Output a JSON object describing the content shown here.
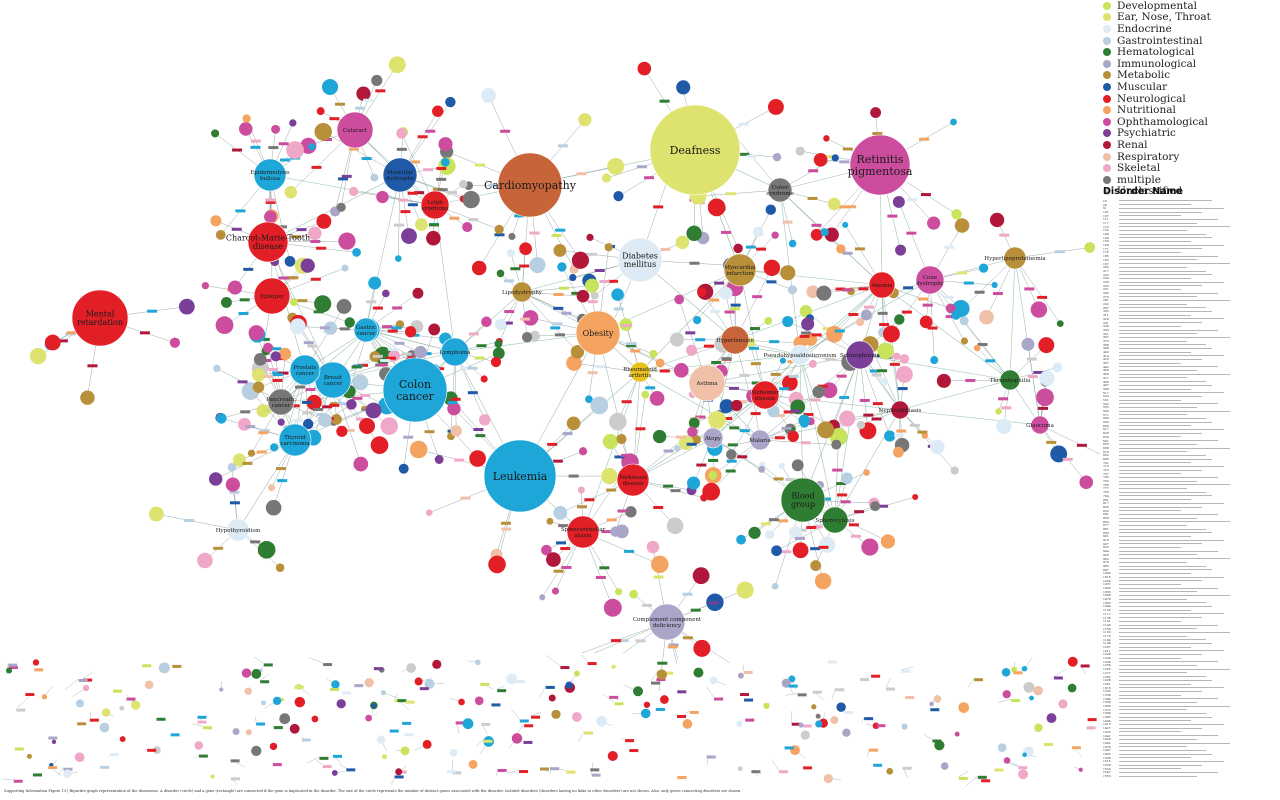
{
  "legend": {
    "items": [
      {
        "label": "Developmental",
        "color": "#c8e45c"
      },
      {
        "label": "Ear, Nose, Throat",
        "color": "#dde36e"
      },
      {
        "label": "Endocrine",
        "color": "#dcebf5"
      },
      {
        "label": "Gastrointestinal",
        "color": "#b7cfe0"
      },
      {
        "label": "Hematological",
        "color": "#2f7d32"
      },
      {
        "label": "Immunological",
        "color": "#a9a6c8"
      },
      {
        "label": "Metabolic",
        "color": "#b8903a"
      },
      {
        "label": "Muscular",
        "color": "#1e5aa8"
      },
      {
        "label": "Neurological",
        "color": "#e21f26"
      },
      {
        "label": "Nutritional",
        "color": "#f4a460"
      },
      {
        "label": "Ophthamological",
        "color": "#cc4c9e"
      },
      {
        "label": "Psychiatric",
        "color": "#7b3f98"
      },
      {
        "label": "Renal",
        "color": "#b0173a"
      },
      {
        "label": "Respiratory",
        "color": "#f0c0a8"
      },
      {
        "label": "Skeletal",
        "color": "#f0a8c8"
      },
      {
        "label": "multiple",
        "color": "#777777"
      },
      {
        "label": "Unclassified",
        "color": "#cccccc"
      }
    ]
  },
  "disorder_index": {
    "title": "Disorder Name",
    "numbers": [
      "16",
      "24",
      "51",
      "101",
      "107",
      "111",
      "117",
      "123",
      "132",
      "144",
      "149",
      "155",
      "166",
      "171",
      "178",
      "185",
      "192",
      "197",
      "205",
      "217",
      "222",
      "230",
      "239",
      "245",
      "251",
      "262",
      "275",
      "281",
      "292",
      "297",
      "303",
      "311",
      "320",
      "331",
      "339",
      "343",
      "351",
      "367",
      "375",
      "388",
      "399",
      "402",
      "414",
      "425",
      "437",
      "442",
      "458",
      "466",
      "471",
      "480",
      "497",
      "506",
      "517",
      "524",
      "531",
      "542",
      "555",
      "560",
      "571",
      "584",
      "592",
      "609",
      "617",
      "628",
      "633",
      "641",
      "655",
      "668",
      "674",
      "682",
      "696",
      "701",
      "716",
      "723",
      "737",
      "745",
      "752",
      "766",
      "777",
      "783",
      "794",
      "801",
      "817",
      "826",
      "832",
      "841",
      "858",
      "864",
      "877",
      "881",
      "893",
      "901",
      "919",
      "927",
      "933",
      "944",
      "958",
      "963",
      "976",
      "982",
      "997",
      "1003",
      "1016",
      "1024",
      "1037",
      "1045",
      "1058",
      "1066",
      "1079",
      "1083",
      "1094",
      "1102",
      "1117",
      "1126",
      "1131",
      "1148",
      "1159",
      "1163",
      "1175",
      "1184",
      "1196",
      "1207",
      "1211",
      "1228",
      "1234",
      "1249",
      "1256",
      "1263",
      "1277",
      "1282",
      "1298",
      "1301",
      "1316",
      "1325",
      "1338",
      "1344",
      "1359",
      "1366",
      "1372",
      "1389",
      "1395",
      "1404",
      "1418",
      "1427",
      "1433",
      "1441",
      "1459",
      "1462",
      "1476",
      "1487",
      "1493",
      "1508",
      "1515",
      "1529",
      "1532",
      "1547",
      "1553",
      "1564",
      "1578",
      "1586",
      "1591",
      "1605",
      "1618",
      "1622",
      "1639",
      "1643",
      "1657",
      "1664",
      "1672",
      "1688",
      "1695",
      "1702",
      "1719",
      "1721",
      "1738",
      "1746",
      "1757",
      "1768",
      "1773",
      "1785",
      "1792",
      "1806",
      "1811",
      "1827",
      "1834",
      "1849",
      "1856",
      "1862",
      "1879",
      "1883",
      "1895",
      "1904",
      "1918",
      "1926",
      "1931",
      "1947",
      "1953",
      "1969",
      "1972",
      "1988",
      "1993",
      "2005",
      "2011",
      "2024",
      "2038",
      "2043",
      "2056",
      "2067",
      "2075",
      "2082",
      "2094",
      "2101",
      "2119",
      "2127",
      "2133",
      "2146",
      "2154",
      "2168",
      "2172",
      "2189",
      "2195",
      "2207",
      "2214",
      "2226",
      "2231",
      "2248",
      "2255",
      "2267",
      "2273",
      "2285",
      "2291",
      "2312",
      "2322",
      "2333",
      "2345",
      "2356",
      "2378",
      "2389",
      "2399",
      "2412",
      "2422",
      "2444",
      "2468",
      "2487",
      "2509",
      "2522",
      "2531",
      "2545",
      "2566",
      "2584"
    ]
  },
  "graph": {
    "hubs": [
      {
        "label": "Deafness",
        "color": "#dde36e",
        "size": 3
      },
      {
        "label": "Cardiomyopathy",
        "color": "#c8643a",
        "size": 2
      },
      {
        "label": "Retinitis pigmentosa",
        "color": "#cc4c9e",
        "size": 2
      },
      {
        "label": "Diabetes mellitus",
        "color": "#dcebf5",
        "size": 2
      },
      {
        "label": "Obesity",
        "color": "#f4a460",
        "size": 2
      },
      {
        "label": "Colon cancer",
        "color": "#1fa6d8",
        "size": 3
      },
      {
        "label": "Leukemia",
        "color": "#1fa6d8",
        "size": 3
      },
      {
        "label": "Mental retardation",
        "color": "#e21f26",
        "size": 2
      },
      {
        "label": "Epilepsy",
        "color": "#e21f26",
        "size": 1
      },
      {
        "label": "Charcot-Marie-Tooth disease",
        "color": "#e21f26",
        "size": 1
      },
      {
        "label": "Cataract",
        "color": "#cc4c9e",
        "size": 1
      },
      {
        "label": "Asthma",
        "color": "#f0c0a8",
        "size": 1
      },
      {
        "label": "Myocardial infarction",
        "color": "#b8903a",
        "size": 1
      },
      {
        "label": "Hypertension",
        "color": "#c8643a",
        "size": 1
      },
      {
        "label": "Alzheimer disease",
        "color": "#e21f26",
        "size": 1
      },
      {
        "label": "Blood group",
        "color": "#2f7d32",
        "size": 1
      },
      {
        "label": "Complement component deficiency",
        "color": "#a9a6c8",
        "size": 1
      },
      {
        "label": "Spinocerebellar ataxia",
        "color": "#e21f26",
        "size": 1
      },
      {
        "label": "Parkinson disease",
        "color": "#e21f26",
        "size": 1
      },
      {
        "label": "Breast cancer",
        "color": "#1fa6d8",
        "size": 1
      },
      {
        "label": "Prostate cancer",
        "color": "#1fa6d8",
        "size": 1
      },
      {
        "label": "Lymphoma",
        "color": "#1fa6d8",
        "size": 1
      },
      {
        "label": "Gastric cancer",
        "color": "#1fa6d8",
        "size": 1
      },
      {
        "label": "Thyroid carcinoma",
        "color": "#1fa6d8",
        "size": 1
      },
      {
        "label": "Pancreatic cancer",
        "color": "#777777",
        "size": 1
      },
      {
        "label": "Epidermolysis bullosa",
        "color": "#1fa6d8",
        "size": 1
      },
      {
        "label": "Muscular dystrophy",
        "color": "#1e5aa8",
        "size": 1
      },
      {
        "label": "Leigh syndrome",
        "color": "#e21f26",
        "size": 1
      },
      {
        "label": "Usher syndrome",
        "color": "#777777",
        "size": 1
      },
      {
        "label": "Cone dystrophy",
        "color": "#cc4c9e",
        "size": 1
      },
      {
        "label": "Schizophrenia",
        "color": "#7b3f98",
        "size": 1
      },
      {
        "label": "Anemia",
        "color": "#e21f26",
        "size": 1
      },
      {
        "label": "Spherocytosis",
        "color": "#2f7d32",
        "size": 1
      },
      {
        "label": "Atopy",
        "color": "#a9a6c8",
        "size": 1
      },
      {
        "label": "Malaria",
        "color": "#a9a6c8",
        "size": 1
      },
      {
        "label": "Rheumatoid arthritis",
        "color": "#e8c020",
        "size": 1
      },
      {
        "label": "Lipodystrophy",
        "color": "#b8903a",
        "size": 1
      },
      {
        "label": "Hypothyroidism",
        "color": "#dcebf5",
        "size": 1
      },
      {
        "label": "Pseudohypoaldosteronism",
        "color": "#dcebf5",
        "size": 1
      },
      {
        "label": "Hyperlipoproteinemia",
        "color": "#b8903a",
        "size": 1
      },
      {
        "label": "Gastric cancer",
        "color": "#1fa6d8",
        "size": 1
      },
      {
        "label": "Thrombophilia",
        "color": "#2f7d32",
        "size": 1
      },
      {
        "label": "Nephrolithiasis",
        "color": "#b0173a",
        "size": 1
      },
      {
        "label": "Glaucoma",
        "color": "#cc4c9e",
        "size": 1
      }
    ]
  },
  "caption": "Supporting Information Figure 13 | Bipartite-graph representation of the diseasome. A disorder (circle) and a gene (rectangle) are connected if the gene is implicated in the disorder. The size of the circle represents the number of distinct genes associated with the disorder. Isolated disorders (disorders having no links to other disorders) are not shown. Also, only genes connecting disorders are shown."
}
